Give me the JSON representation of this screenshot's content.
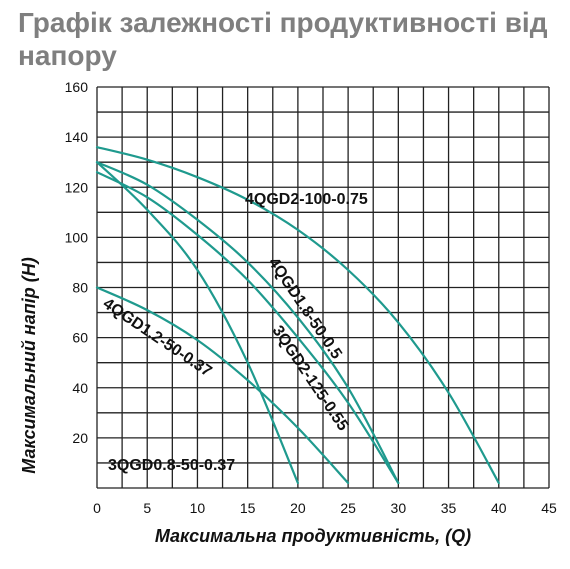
{
  "title": "Графік залежності продуктивності від напору",
  "colors": {
    "curve": "#1f9a8e",
    "grid": "#222222",
    "title": "#7f7f7f"
  },
  "chart_data": {
    "type": "line",
    "title": "Графік залежності продуктивності від напору",
    "xlabel": "Максимальна продуктивність, (Q)",
    "ylabel": "Максимальний напір (H)",
    "xlim": [
      0,
      45
    ],
    "ylim": [
      0,
      160
    ],
    "xticks": [
      0,
      5,
      10,
      15,
      20,
      25,
      30,
      35,
      40,
      45
    ],
    "yticks": [
      20,
      40,
      60,
      80,
      100,
      120,
      140,
      160
    ],
    "x_minor_step": 2.5,
    "y_minor_step": 10,
    "grid": true,
    "series": [
      {
        "name": "4QGD2-100-0.75",
        "x": [
          0,
          5,
          10,
          15,
          20,
          25,
          30,
          35,
          40
        ],
        "y": [
          136,
          131,
          124,
          115,
          103,
          87,
          66,
          38,
          2
        ]
      },
      {
        "name": "4QGD1.8-50-0.5",
        "x": [
          0,
          5,
          10,
          15,
          20,
          25,
          30
        ],
        "y": [
          130,
          121,
          107,
          90,
          68,
          40,
          2
        ]
      },
      {
        "name": "3QGD2-125-0.55",
        "x": [
          0,
          5,
          10,
          15,
          20,
          25,
          30
        ],
        "y": [
          126,
          116,
          101,
          83,
          60,
          34,
          2
        ]
      },
      {
        "name": "4QGD1.2-50-0.37",
        "x": [
          0,
          5,
          10,
          15,
          20,
          25
        ],
        "y": [
          80,
          71,
          59,
          43,
          24,
          2
        ]
      },
      {
        "name": "3QGD0.8-50-0.37",
        "x": [
          0,
          5,
          10,
          15,
          20
        ],
        "y": [
          130,
          111,
          87,
          50,
          2
        ]
      }
    ]
  }
}
